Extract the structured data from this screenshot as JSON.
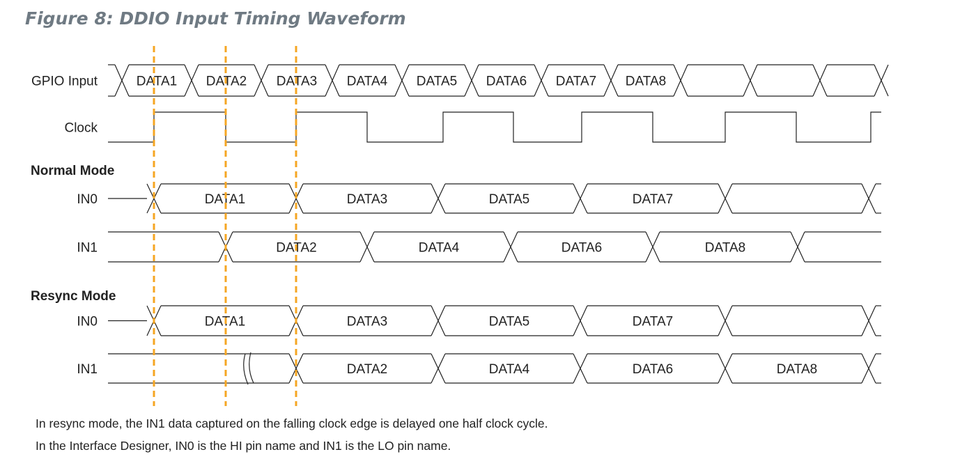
{
  "figure": {
    "title": "Figure 8: DDIO Input Timing Waveform",
    "notes": [
      "In resync mode, the IN1 data captured on the falling clock edge is delayed one half clock cycle.",
      "In the Interface Designer, IN0 is the HI pin name and IN1 is the LO pin name."
    ]
  },
  "colors": {
    "line": "#222222",
    "marker": "#f5a623",
    "title": "#6f7a83"
  },
  "sections": {
    "normal": "Normal Mode",
    "resync": "Resync Mode"
  },
  "signals": [
    {
      "id": "gpio",
      "label": "GPIO Input",
      "kind": "bus",
      "cells": [
        "DATA1",
        "DATA2",
        "DATA3",
        "DATA4",
        "DATA5",
        "DATA6",
        "DATA7",
        "DATA8",
        "",
        "",
        ""
      ]
    },
    {
      "id": "clock",
      "label": "Clock",
      "kind": "clock",
      "cells": []
    },
    {
      "id": "normal-in0",
      "label": "IN0",
      "kind": "bus",
      "section": "normal",
      "cells": [
        "DATA1",
        "DATA3",
        "DATA5",
        "DATA7",
        ""
      ]
    },
    {
      "id": "normal-in1",
      "label": "IN1",
      "kind": "bus",
      "section": "normal",
      "cells": [
        "DATA2",
        "DATA4",
        "DATA6",
        "DATA8"
      ]
    },
    {
      "id": "resync-in0",
      "label": "IN0",
      "kind": "bus",
      "section": "resync",
      "cells": [
        "DATA1",
        "DATA3",
        "DATA5",
        "DATA7",
        ""
      ]
    },
    {
      "id": "resync-in1",
      "label": "IN1",
      "kind": "bus",
      "section": "resync",
      "cells": [
        "DATA2",
        "DATA4",
        "DATA6",
        "DATA8"
      ],
      "break_marker": true
    }
  ]
}
